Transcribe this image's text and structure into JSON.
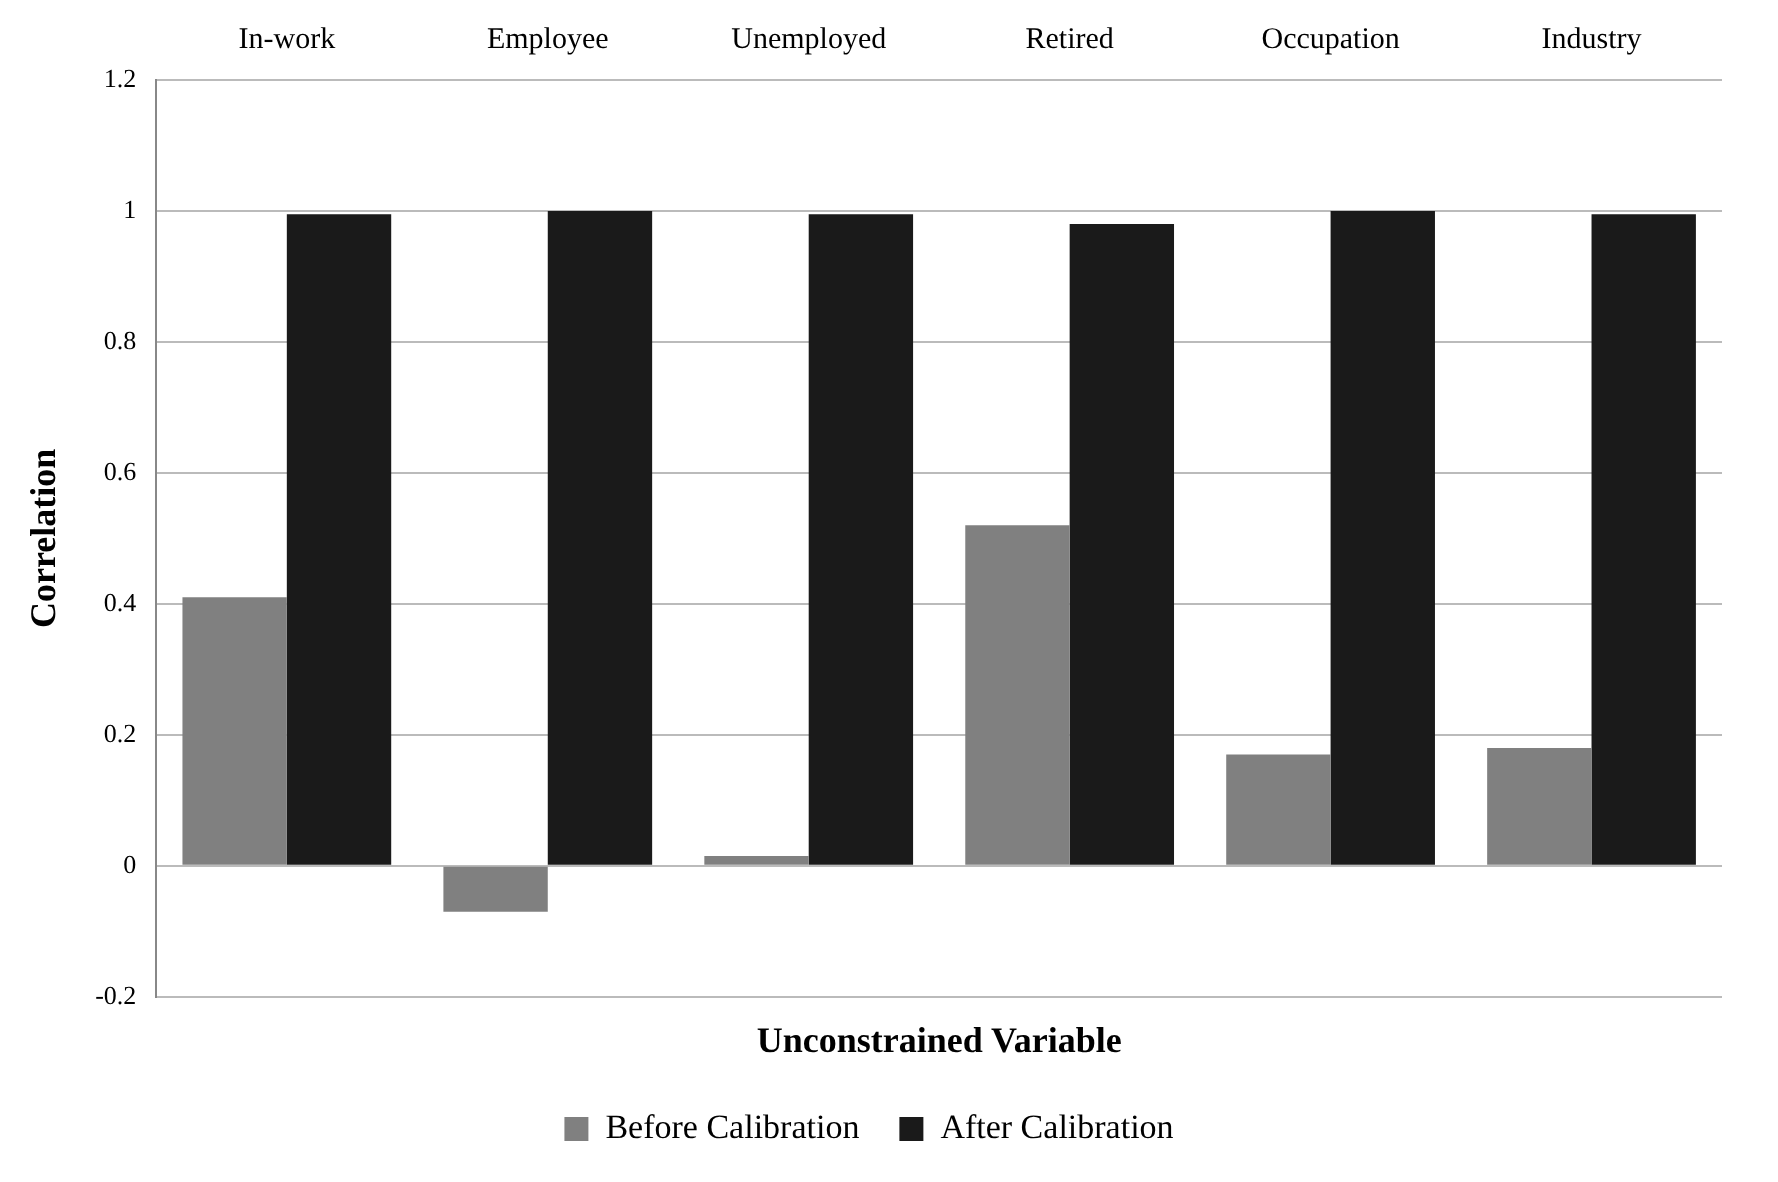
{
  "chart_data": {
    "type": "bar",
    "xlabel": "Unconstrained Variable",
    "ylabel": "Correlation",
    "categories": [
      "In-work",
      "Employee",
      "Unemployed",
      "Retired",
      "Occupation",
      "Industry"
    ],
    "series": [
      {
        "name": "Before Calibration",
        "color": "#808080",
        "values": [
          0.41,
          -0.07,
          0.015,
          0.52,
          0.17,
          0.18
        ]
      },
      {
        "name": "After Calibration",
        "color": "#1a1a1a",
        "values": [
          0.995,
          1.0,
          0.995,
          0.98,
          1.0,
          0.995
        ]
      }
    ],
    "ylim": [
      -0.2,
      1.2
    ],
    "yticks": [
      -0.2,
      0,
      0.2,
      0.4,
      0.6,
      0.8,
      1,
      1.2
    ],
    "grid": "y",
    "legend": "bottom"
  }
}
